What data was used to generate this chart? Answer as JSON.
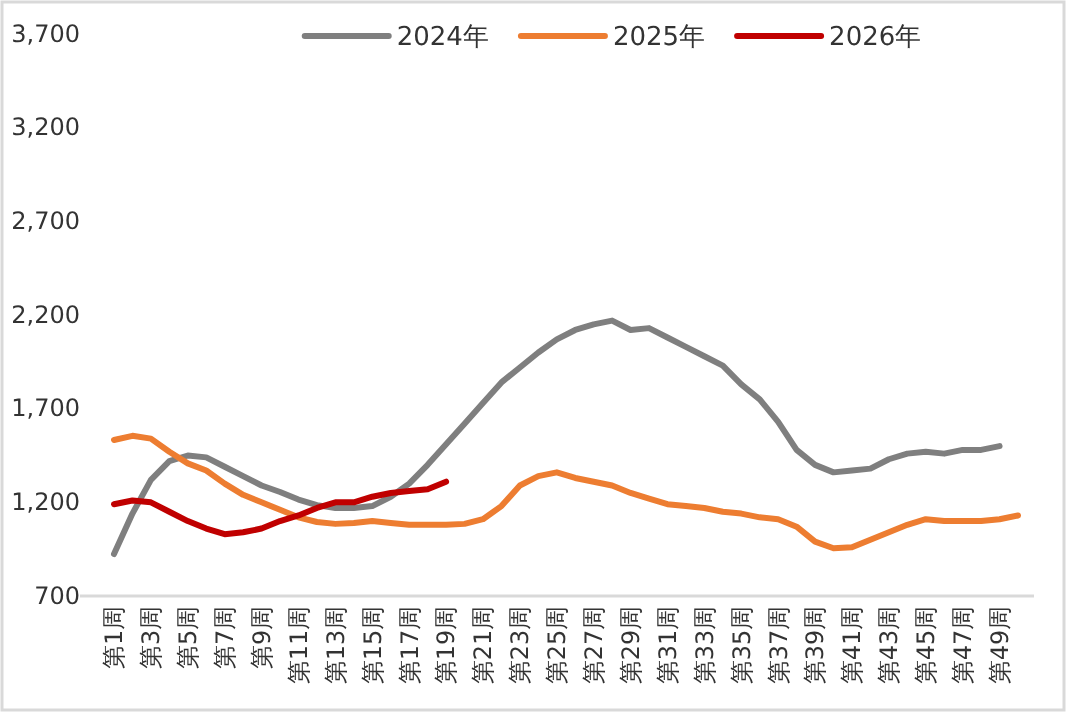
{
  "chart_data": {
    "type": "line",
    "categories": [
      "第1周",
      null,
      "第3周",
      null,
      "第5周",
      null,
      "第7周",
      null,
      "第9周",
      null,
      "第11周",
      null,
      "第13周",
      null,
      "第15周",
      null,
      "第17周",
      null,
      "第19周",
      null,
      "第21周",
      null,
      "第23周",
      null,
      "第25周",
      null,
      "第27周",
      null,
      "第29周",
      null,
      "第31周",
      null,
      "第33周",
      null,
      "第35周",
      null,
      "第37周",
      null,
      "第39周",
      null,
      "第41周",
      null,
      "第43周",
      null,
      "第45周",
      null,
      "第47周",
      null,
      "第49周",
      null
    ],
    "series": [
      {
        "name": "2024年",
        "color": "#7f7f7f",
        "values": [
          924,
          1140,
          1320,
          1420,
          1450,
          1440,
          1390,
          1340,
          1290,
          1255,
          1215,
          1185,
          1170,
          1170,
          1180,
          1230,
          1300,
          1400,
          1510,
          1620,
          1730,
          1840,
          1920,
          2000,
          2070,
          2120,
          2150,
          2170,
          2120,
          2130,
          2080,
          2030,
          1980,
          1930,
          1830,
          1750,
          1630,
          1480,
          1400,
          1360,
          1370,
          1380,
          1430,
          1460,
          1470,
          1460,
          1480,
          1480,
          1500,
          null
        ]
      },
      {
        "name": "2025年",
        "color": "#ed7d31",
        "values": [
          1533,
          1555,
          1540,
          1470,
          1408,
          1370,
          1300,
          1240,
          1200,
          1160,
          1120,
          1095,
          1085,
          1090,
          1100,
          1090,
          1080,
          1080,
          1080,
          1085,
          1110,
          1180,
          1290,
          1340,
          1360,
          1330,
          1310,
          1290,
          1250,
          1220,
          1190,
          1180,
          1170,
          1150,
          1140,
          1120,
          1110,
          1070,
          990,
          955,
          960,
          1000,
          1040,
          1080,
          1110,
          1100,
          1100,
          1100,
          1110,
          1130
        ]
      },
      {
        "name": "2026年",
        "color": "#c00000",
        "values": [
          1190,
          1210,
          1200,
          1150,
          1100,
          1060,
          1030,
          1040,
          1060,
          1100,
          1130,
          1170,
          1200,
          1200,
          1230,
          1250,
          1260,
          1270,
          1310,
          null,
          null,
          null,
          null,
          null,
          null,
          null,
          null,
          null,
          null,
          null,
          null,
          null,
          null,
          null,
          null,
          null,
          null,
          null,
          null,
          null,
          null,
          null,
          null,
          null,
          null,
          null,
          null,
          null,
          null,
          null
        ]
      }
    ],
    "ylim": [
      700,
      3700
    ],
    "yticks": [
      {
        "value": 700,
        "label": "700"
      },
      {
        "value": 1200,
        "label": "1,200"
      },
      {
        "value": 1700,
        "label": "1,700"
      },
      {
        "value": 2200,
        "label": "2,200"
      },
      {
        "value": 2700,
        "label": "2,700"
      },
      {
        "value": 3200,
        "label": "3,200"
      },
      {
        "value": 3700,
        "label": "3,700"
      }
    ],
    "grid": false,
    "legend": "top",
    "line_style": "solid",
    "marker": "none"
  }
}
